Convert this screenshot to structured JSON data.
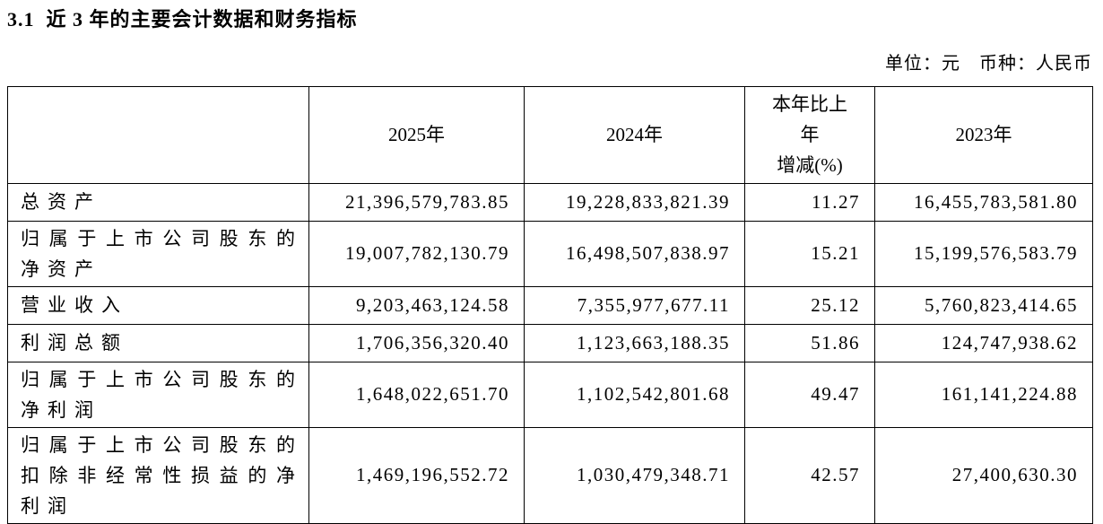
{
  "page": {
    "title": "3.1  近 3 年的主要会计数据和财务指标",
    "unit_note": "单位：元　币种：人民币"
  },
  "table": {
    "header": {
      "col_item": "",
      "col_2025": "2025年",
      "col_2024": "2024年",
      "col_change": "本年比上\n年\n增减(%)",
      "col_2023": "2023年"
    },
    "rows": [
      {
        "label": "总资产",
        "y2025": "21,396,579,783.85",
        "y2024": "19,228,833,821.39",
        "change": "11.27",
        "y2023": "16,455,783,581.80"
      },
      {
        "label": "归属于上市公司股东的净资产",
        "y2025": "19,007,782,130.79",
        "y2024": "16,498,507,838.97",
        "change": "15.21",
        "y2023": "15,199,576,583.79"
      },
      {
        "label": "营业收入",
        "y2025": "9,203,463,124.58",
        "y2024": "7,355,977,677.11",
        "change": "25.12",
        "y2023": "5,760,823,414.65"
      },
      {
        "label": "利润总额",
        "y2025": "1,706,356,320.40",
        "y2024": "1,123,663,188.35",
        "change": "51.86",
        "y2023": "124,747,938.62"
      },
      {
        "label": "归属于上市公司股东的净利润",
        "y2025": "1,648,022,651.70",
        "y2024": "1,102,542,801.68",
        "change": "49.47",
        "y2023": "161,141,224.88"
      },
      {
        "label": "归属于上市公司股东的扣除非经常性损益的净利润",
        "y2025": "1,469,196,552.72",
        "y2024": "1,030,479,348.71",
        "change": "42.57",
        "y2023": "27,400,630.30"
      }
    ]
  }
}
